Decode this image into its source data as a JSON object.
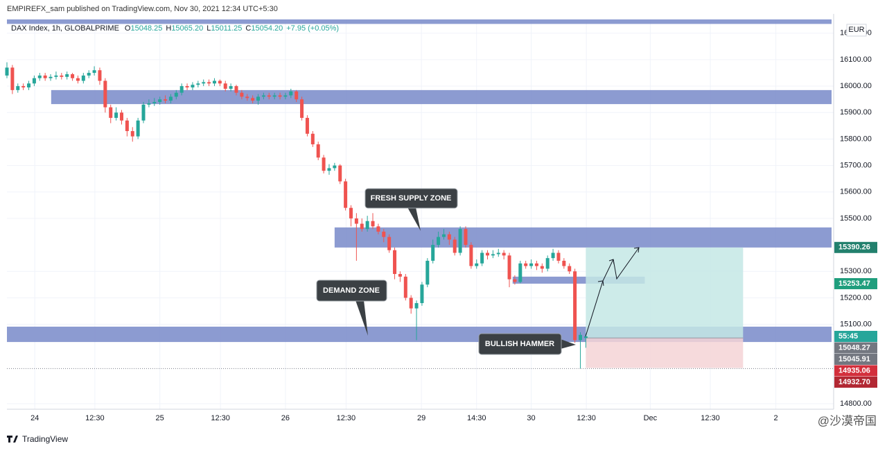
{
  "header": {
    "publisher": "EMPIREFX_sam published on TradingView.com, Nov 30, 2021 12:34 UTC+5:30",
    "logo": "TradingView",
    "watermark": "@沙漠帝国"
  },
  "chart_data": {
    "type": "candlestick",
    "symbol": "DAX Index, 1h, GLOBALPRIME",
    "legend": {
      "labels": [
        "O",
        "H",
        "L",
        "C"
      ],
      "value_labels": [
        "15048.25",
        "15065.20",
        "15011.25",
        "15054.20"
      ],
      "change": "+7.95 (+0.05%)"
    },
    "currency": "EUR",
    "up_color": "#26a69a",
    "down_color": "#ef5350",
    "x": [
      0,
      1,
      2,
      3,
      4,
      5,
      6,
      7,
      8,
      9,
      10,
      11,
      12,
      13,
      14,
      15,
      16,
      17,
      18,
      19,
      20,
      21,
      22,
      23,
      24,
      25,
      26,
      27,
      28,
      29,
      30,
      31,
      32,
      33,
      34,
      35,
      36,
      37,
      38,
      39,
      40,
      41,
      42,
      43,
      44,
      45,
      46,
      47,
      48,
      49,
      50,
      51,
      52,
      53,
      54,
      55,
      56,
      57,
      58,
      59,
      60,
      61,
      62,
      63,
      64,
      65,
      66,
      67,
      68,
      69,
      70,
      71,
      72,
      73,
      74,
      75,
      76,
      77,
      78,
      79,
      80,
      81,
      82,
      83,
      84,
      85,
      86,
      87,
      88,
      89,
      90,
      91,
      92,
      93,
      94,
      95,
      96,
      97,
      98,
      99,
      100,
      101,
      102,
      103,
      104,
      105,
      106
    ],
    "candles": [
      [
        16040,
        16090,
        16030,
        16070
      ],
      [
        16070,
        16080,
        15970,
        15985
      ],
      [
        15985,
        16010,
        15975,
        16000
      ],
      [
        16000,
        16010,
        15985,
        15995
      ],
      [
        15995,
        16020,
        15985,
        16010
      ],
      [
        16010,
        16040,
        16000,
        16030
      ],
      [
        16030,
        16050,
        16020,
        16040
      ],
      [
        16040,
        16050,
        16020,
        16030
      ],
      [
        16030,
        16045,
        16020,
        16035
      ],
      [
        16035,
        16055,
        16025,
        16040
      ],
      [
        16040,
        16050,
        16025,
        16035
      ],
      [
        16035,
        16055,
        16025,
        16045
      ],
      [
        16045,
        16050,
        16020,
        16030
      ],
      [
        16030,
        16040,
        16010,
        16020
      ],
      [
        16020,
        16050,
        16010,
        16040
      ],
      [
        16040,
        16060,
        16030,
        16050
      ],
      [
        16050,
        16075,
        16040,
        16060
      ],
      [
        16060,
        16070,
        16005,
        16020
      ],
      [
        16020,
        16030,
        15900,
        15920
      ],
      [
        15920,
        15930,
        15860,
        15880
      ],
      [
        15880,
        15920,
        15870,
        15900
      ],
      [
        15900,
        15910,
        15855,
        15870
      ],
      [
        15870,
        15880,
        15810,
        15830
      ],
      [
        15830,
        15845,
        15790,
        15810
      ],
      [
        15810,
        15880,
        15800,
        15870
      ],
      [
        15870,
        15940,
        15860,
        15930
      ],
      [
        15930,
        15950,
        15920,
        15935
      ],
      [
        15935,
        15955,
        15925,
        15940
      ],
      [
        15940,
        15960,
        15930,
        15950
      ],
      [
        15950,
        15965,
        15935,
        15945
      ],
      [
        15945,
        15970,
        15935,
        15960
      ],
      [
        15960,
        15985,
        15950,
        15975
      ],
      [
        15975,
        16010,
        15965,
        16000
      ],
      [
        16000,
        16010,
        15985,
        15995
      ],
      [
        15995,
        16015,
        15985,
        16005
      ],
      [
        16005,
        16020,
        15995,
        16010
      ],
      [
        16010,
        16025,
        16000,
        16015
      ],
      [
        16015,
        16025,
        16000,
        16010
      ],
      [
        16010,
        16030,
        16000,
        16020
      ],
      [
        16020,
        16025,
        16000,
        16010
      ],
      [
        16010,
        16020,
        15980,
        15990
      ],
      [
        15990,
        16010,
        15980,
        16000
      ],
      [
        16000,
        16005,
        15965,
        15975
      ],
      [
        15975,
        15985,
        15950,
        15960
      ],
      [
        15960,
        15970,
        15945,
        15955
      ],
      [
        15955,
        15965,
        15935,
        15945
      ],
      [
        15945,
        15970,
        15930,
        15960
      ],
      [
        15960,
        15975,
        15950,
        15965
      ],
      [
        15965,
        15975,
        15950,
        15960
      ],
      [
        15960,
        15975,
        15950,
        15965
      ],
      [
        15965,
        15975,
        15950,
        15960
      ],
      [
        15960,
        15975,
        15950,
        15965
      ],
      [
        15965,
        15990,
        15955,
        15980
      ],
      [
        15980,
        15985,
        15940,
        15950
      ],
      [
        15950,
        15960,
        15870,
        15880
      ],
      [
        15880,
        15890,
        15810,
        15820
      ],
      [
        15820,
        15830,
        15770,
        15780
      ],
      [
        15780,
        15790,
        15720,
        15730
      ],
      [
        15730,
        15740,
        15670,
        15680
      ],
      [
        15680,
        15705,
        15665,
        15690
      ],
      [
        15690,
        15710,
        15680,
        15700
      ],
      [
        15700,
        15705,
        15630,
        15640
      ],
      [
        15640,
        15650,
        15530,
        15540
      ],
      [
        15540,
        15550,
        15470,
        15500
      ],
      [
        15500,
        15520,
        15340,
        15480
      ],
      [
        15480,
        15500,
        15450,
        15460
      ],
      [
        15460,
        15510,
        15450,
        15490
      ],
      [
        15490,
        15520,
        15460,
        15470
      ],
      [
        15470,
        15480,
        15440,
        15450
      ],
      [
        15450,
        15460,
        15410,
        15430
      ],
      [
        15430,
        15440,
        15370,
        15380
      ],
      [
        15380,
        15390,
        15270,
        15290
      ],
      [
        15290,
        15300,
        15260,
        15280
      ],
      [
        15280,
        15290,
        15190,
        15200
      ],
      [
        15200,
        15210,
        15140,
        15160
      ],
      [
        15160,
        15190,
        15040,
        15180
      ],
      [
        15180,
        15260,
        15170,
        15250
      ],
      [
        15250,
        15350,
        15240,
        15340
      ],
      [
        15340,
        15420,
        15330,
        15400
      ],
      [
        15400,
        15450,
        15390,
        15430
      ],
      [
        15430,
        15460,
        15420,
        15440
      ],
      [
        15440,
        15450,
        15400,
        15420
      ],
      [
        15420,
        15430,
        15360,
        15370
      ],
      [
        15370,
        15470,
        15360,
        15460
      ],
      [
        15460,
        15470,
        15390,
        15400
      ],
      [
        15400,
        15410,
        15310,
        15320
      ],
      [
        15320,
        15345,
        15310,
        15330
      ],
      [
        15330,
        15380,
        15320,
        15370
      ],
      [
        15370,
        15380,
        15345,
        15360
      ],
      [
        15360,
        15380,
        15350,
        15365
      ],
      [
        15365,
        15385,
        15355,
        15370
      ],
      [
        15370,
        15380,
        15345,
        15360
      ],
      [
        15360,
        15370,
        15240,
        15270
      ],
      [
        15270,
        15285,
        15250,
        15260
      ],
      [
        15260,
        15340,
        15255,
        15330
      ],
      [
        15330,
        15340,
        15310,
        15320
      ],
      [
        15320,
        15345,
        15310,
        15330
      ],
      [
        15330,
        15340,
        15305,
        15320
      ],
      [
        15320,
        15330,
        15295,
        15310
      ],
      [
        15310,
        15360,
        15300,
        15350
      ],
      [
        15350,
        15385,
        15340,
        15370
      ],
      [
        15370,
        15380,
        15330,
        15340
      ],
      [
        15340,
        15350,
        15310,
        15320
      ],
      [
        15320,
        15330,
        15290,
        15300
      ],
      [
        15300,
        15310,
        15030,
        15040
      ],
      [
        15040,
        15070,
        14932.7,
        15060
      ],
      [
        15048.25,
        15065.2,
        15011.25,
        15054.2
      ]
    ],
    "xlim": [
      0,
      151
    ],
    "xticks": [
      {
        "value": 5.1,
        "label": "24"
      },
      {
        "value": 16.1,
        "label": "12:30"
      },
      {
        "value": 28.0,
        "label": "25"
      },
      {
        "value": 39.1,
        "label": "12:30"
      },
      {
        "value": 51.0,
        "label": "26"
      },
      {
        "value": 62.1,
        "label": "12:30"
      },
      {
        "value": 75.9,
        "label": "29"
      },
      {
        "value": 86.0,
        "label": "14:30"
      },
      {
        "value": 96.0,
        "label": "30"
      },
      {
        "value": 106.1,
        "label": "12:30"
      },
      {
        "value": 117.8,
        "label": "Dec"
      },
      {
        "value": 128.8,
        "label": "12:30"
      },
      {
        "value": 140.8,
        "label": "2"
      }
    ],
    "ylim": [
      14779,
      16252
    ],
    "yticks": [
      {
        "value": 16200,
        "label": "16200.00"
      },
      {
        "value": 16100,
        "label": "16100.00"
      },
      {
        "value": 16000,
        "label": "16000.00"
      },
      {
        "value": 15900,
        "label": "15900.00"
      },
      {
        "value": 15800,
        "label": "15800.00"
      },
      {
        "value": 15700,
        "label": "15700.00"
      },
      {
        "value": 15600,
        "label": "15600.00"
      },
      {
        "value": 15500,
        "label": "15500.00"
      },
      {
        "value": 15300,
        "label": "15300.00"
      },
      {
        "value": 15200,
        "label": "15200.00"
      },
      {
        "value": 15100,
        "label": "15100.00"
      },
      {
        "value": 14800,
        "label": "14800.00"
      }
    ],
    "grid": true,
    "zones": [
      {
        "x": [
          0,
          151
        ],
        "y": [
          16235,
          16252
        ],
        "color": "#7f90cc"
      },
      {
        "x": [
          8.1,
          151
        ],
        "y": [
          15932,
          15985
        ],
        "color": "#7f90cc"
      },
      {
        "x": [
          60.0,
          151
        ],
        "y": [
          15390,
          15466
        ],
        "color": "#7f90cc"
      },
      {
        "x": [
          0,
          151
        ],
        "y": [
          15033,
          15091
        ],
        "color": "#7f90cc"
      },
      {
        "x": [
          92.6,
          116.8
        ],
        "y": [
          15253.47,
          15280
        ],
        "color": "#7f90cc"
      }
    ],
    "position": {
      "x": [
        106,
        134.8
      ],
      "entry": 15048.27,
      "target": 15390.26,
      "stop": 14935.06,
      "target_color": "#c4e8e5",
      "stop_color": "#f4d3d6"
    },
    "annotations": [
      "FRESH SUPPLY ZONE",
      "DEMAND ZONE",
      "BULLISH HAMMER"
    ],
    "price_tags": [
      {
        "value": 15390.26,
        "color": "#22806d"
      },
      {
        "value": 15253.47,
        "color": "#1f9e7d"
      },
      {
        "value": 15054.2,
        "label": "55:45",
        "color": "#26a69a"
      },
      {
        "value": 15048.27,
        "color": "#737780"
      },
      {
        "value": 15045.91,
        "color": "#737780"
      },
      {
        "value": 14935.06,
        "color": "#d32f3c"
      },
      {
        "value": 14932.7,
        "label": "14932.70",
        "color": "#b22833"
      }
    ]
  }
}
